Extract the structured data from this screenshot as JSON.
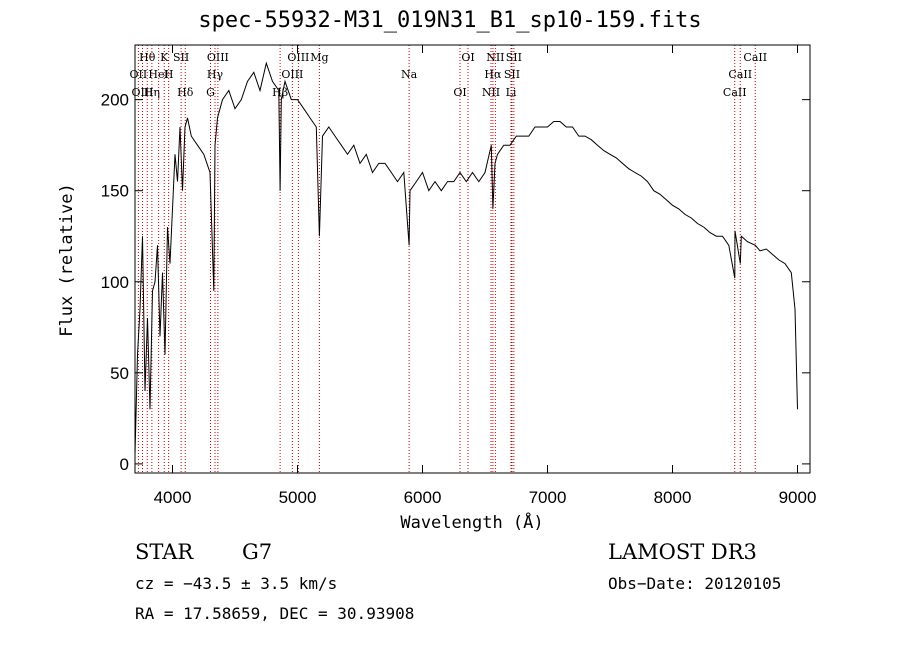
{
  "chart_data": {
    "type": "line",
    "title": "spec-55932-M31_019N31_B1_sp10-159.fits",
    "xlabel": "Wavelength (Å)",
    "ylabel": "Flux (relative)",
    "xlim": [
      3700,
      9100
    ],
    "ylim": [
      -5,
      230
    ],
    "xticks": [
      4000,
      5000,
      6000,
      7000,
      8000,
      9000
    ],
    "yticks": [
      0,
      50,
      100,
      150,
      200
    ],
    "grid": false,
    "line_color": "#000000",
    "marker_color": "#cc0000",
    "spectrum": {
      "x": [
        3700,
        3720,
        3740,
        3760,
        3780,
        3800,
        3820,
        3840,
        3860,
        3880,
        3900,
        3920,
        3940,
        3960,
        3980,
        4000,
        4020,
        4040,
        4060,
        4080,
        4100,
        4120,
        4150,
        4200,
        4250,
        4300,
        4330,
        4340,
        4360,
        4400,
        4450,
        4500,
        4550,
        4600,
        4650,
        4700,
        4750,
        4800,
        4850,
        4861,
        4870,
        4900,
        4950,
        5000,
        5050,
        5100,
        5150,
        5175,
        5200,
        5250,
        5300,
        5350,
        5400,
        5450,
        5500,
        5550,
        5600,
        5650,
        5700,
        5750,
        5800,
        5850,
        5893,
        5900,
        5950,
        6000,
        6050,
        6100,
        6150,
        6200,
        6250,
        6300,
        6350,
        6400,
        6450,
        6500,
        6550,
        6563,
        6580,
        6600,
        6650,
        6700,
        6750,
        6800,
        6850,
        6900,
        6950,
        7000,
        7050,
        7100,
        7150,
        7200,
        7250,
        7300,
        7350,
        7400,
        7450,
        7500,
        7550,
        7600,
        7650,
        7700,
        7750,
        7800,
        7850,
        7900,
        7950,
        8000,
        8050,
        8100,
        8150,
        8200,
        8250,
        8300,
        8350,
        8400,
        8450,
        8498,
        8500,
        8542,
        8550,
        8600,
        8662,
        8700,
        8750,
        8800,
        8850,
        8900,
        8950,
        8980,
        9000
      ],
      "y": [
        5,
        60,
        85,
        125,
        40,
        80,
        30,
        95,
        100,
        120,
        70,
        105,
        60,
        130,
        110,
        140,
        170,
        155,
        185,
        150,
        185,
        190,
        180,
        175,
        170,
        160,
        95,
        175,
        190,
        200,
        205,
        195,
        200,
        210,
        215,
        205,
        220,
        210,
        205,
        150,
        200,
        210,
        200,
        200,
        195,
        190,
        185,
        125,
        180,
        185,
        180,
        175,
        170,
        175,
        165,
        170,
        160,
        165,
        165,
        160,
        155,
        160,
        120,
        150,
        155,
        160,
        150,
        155,
        150,
        155,
        155,
        160,
        155,
        160,
        155,
        160,
        175,
        140,
        165,
        170,
        175,
        175,
        180,
        180,
        180,
        185,
        185,
        185,
        188,
        188,
        185,
        185,
        180,
        180,
        178,
        175,
        172,
        170,
        168,
        165,
        162,
        160,
        158,
        155,
        150,
        148,
        145,
        142,
        140,
        137,
        135,
        132,
        130,
        127,
        125,
        125,
        120,
        102,
        128,
        110,
        125,
        122,
        120,
        117,
        118,
        115,
        112,
        110,
        105,
        85,
        30
      ]
    },
    "line_markers": [
      {
        "label": "Hθ",
        "x": 3798
      },
      {
        "label": "OII",
        "x": 3727
      },
      {
        "label": "OIII",
        "x": 3760
      },
      {
        "label": "K",
        "x": 3934
      },
      {
        "label": "HeI",
        "x": 3889
      },
      {
        "label": "Hη",
        "x": 3835
      },
      {
        "label": "SII",
        "x": 4069
      },
      {
        "label": "H",
        "x": 3969
      },
      {
        "label": "Hδ",
        "x": 4102
      },
      {
        "label": "OIII",
        "x": 4363
      },
      {
        "label": "Hγ",
        "x": 4340
      },
      {
        "label": "G",
        "x": 4304
      },
      {
        "label": "OIII",
        "x": 5007
      },
      {
        "label": "OIII",
        "x": 4959
      },
      {
        "label": "Hβ",
        "x": 4861
      },
      {
        "label": "Mg",
        "x": 5175
      },
      {
        "label": "Na",
        "x": 5893
      },
      {
        "label": "OI",
        "x": 6300
      },
      {
        "label": "OI",
        "x": 6364
      },
      {
        "label": "Hα",
        "x": 6563
      },
      {
        "label": "NII",
        "x": 6548
      },
      {
        "label": "NII",
        "x": 6583
      },
      {
        "label": "SII",
        "x": 6716
      },
      {
        "label": "Li",
        "x": 6708
      },
      {
        "label": "SII",
        "x": 6731
      },
      {
        "label": "CaII",
        "x": 8542
      },
      {
        "label": "CaII",
        "x": 8498
      },
      {
        "label": "CaII",
        "x": 8662
      }
    ]
  },
  "info": {
    "class": "STAR",
    "subclass": "G7",
    "survey": "LAMOST DR3",
    "cz": "cz = −43.5 ± 3.5 km/s",
    "obs_date": "Obs−Date: 20120105",
    "coords": "RA =  17.58659, DEC =  30.93908"
  }
}
